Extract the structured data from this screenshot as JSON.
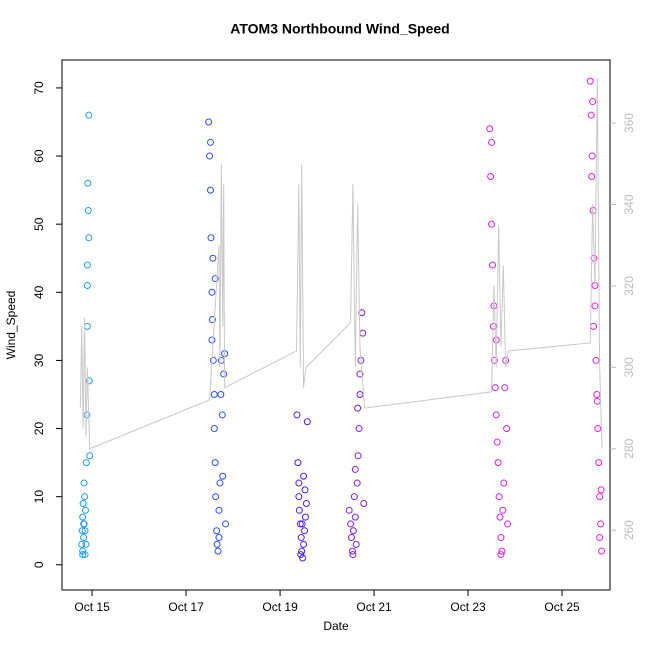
{
  "chart_data": {
    "type": "scatter",
    "title": "ATOM3 Northbound Wind_Speed",
    "x_label": "Date",
    "y_label": "Wind_Speed",
    "xlim": [
      14.36,
      26.02
    ],
    "ylim": [
      -3.7,
      74.1
    ],
    "y2lim": [
      245.3,
      375.5
    ],
    "xticks": [
      {
        "value": 15,
        "label": "Oct 15"
      },
      {
        "value": 17,
        "label": "Oct 17"
      },
      {
        "value": 19,
        "label": "Oct 19"
      },
      {
        "value": 21,
        "label": "Oct 21"
      },
      {
        "value": 23,
        "label": "Oct 23"
      },
      {
        "value": 25,
        "label": "Oct 25"
      }
    ],
    "yticks": [
      0,
      10,
      20,
      30,
      40,
      50,
      60,
      70
    ],
    "y2ticks": [
      260,
      280,
      300,
      320,
      340,
      360
    ],
    "series": [
      {
        "color": "#1e9bf0",
        "x": [
          14.78,
          14.79,
          14.8,
          14.8,
          14.81,
          14.82,
          14.82,
          14.83,
          14.84,
          14.85,
          14.86,
          14.87,
          14.88,
          14.89,
          14.9,
          14.9,
          14.91,
          14.92,
          14.93,
          14.94,
          14.95,
          14.85,
          14.93,
          14.9,
          14.8,
          14.83
        ],
        "values": [
          3,
          5,
          7,
          2,
          9,
          4,
          6,
          12,
          10,
          5,
          8,
          3,
          15,
          22,
          35,
          44,
          56,
          52,
          48,
          27,
          16,
          1.5,
          66,
          41,
          1.5,
          6
        ]
      },
      {
        "color": "#2a4ff0",
        "x": [
          17.48,
          17.5,
          17.52,
          17.53,
          17.55,
          17.56,
          17.58,
          17.6,
          17.6,
          17.62,
          17.63,
          17.65,
          17.66,
          17.68,
          17.7,
          17.72,
          17.74,
          17.75,
          17.77,
          17.8,
          17.82,
          17.84,
          17.52,
          17.57,
          17.62,
          17.7,
          17.78,
          17.55
        ],
        "values": [
          65,
          60,
          55,
          48,
          40,
          36,
          30,
          25,
          20,
          15,
          10,
          5,
          3,
          2,
          8,
          12,
          25,
          30,
          22,
          28,
          31,
          6,
          62,
          45,
          42,
          4,
          13,
          33
        ]
      },
      {
        "color": "#4b1ee8",
        "x": [
          19.36,
          19.38,
          19.4,
          19.41,
          19.43,
          19.45,
          19.46,
          19.48,
          19.5,
          19.52,
          19.54,
          19.56,
          19.58,
          19.4,
          19.47,
          19.53,
          19.44,
          19.5
        ],
        "values": [
          22,
          15,
          10,
          8,
          6,
          4,
          2,
          1,
          3,
          5,
          7,
          9,
          21,
          12,
          6,
          11,
          1.5,
          13
        ]
      },
      {
        "color": "#7a1ee8",
        "x": [
          20.47,
          20.5,
          20.52,
          20.54,
          20.56,
          20.58,
          20.6,
          20.62,
          20.64,
          20.66,
          20.68,
          20.7,
          20.72,
          20.74,
          20.76,
          20.78,
          20.55,
          20.65,
          20.7,
          20.6
        ],
        "values": [
          8,
          6,
          4,
          2,
          5,
          10,
          7,
          3,
          12,
          16,
          20,
          25,
          30,
          37,
          34,
          9,
          1.5,
          23,
          28,
          14
        ]
      },
      {
        "color": "#d81ee8",
        "x": [
          23.46,
          23.48,
          23.5,
          23.52,
          23.54,
          23.56,
          23.58,
          23.6,
          23.62,
          23.64,
          23.66,
          23.68,
          23.7,
          23.72,
          23.74,
          23.76,
          23.78,
          23.8,
          23.82,
          23.84,
          23.5,
          23.6,
          23.7,
          23.55
        ],
        "values": [
          64,
          57,
          50,
          44,
          35,
          30,
          26,
          22,
          18,
          15,
          10,
          7,
          4,
          2,
          8,
          12,
          26,
          30,
          20,
          6,
          62,
          33,
          1.5,
          38
        ]
      },
      {
        "color": "#f01ee0",
        "x": [
          25.6,
          25.62,
          25.64,
          25.66,
          25.68,
          25.7,
          25.72,
          25.74,
          25.76,
          25.78,
          25.8,
          25.82,
          25.84,
          25.65,
          25.7,
          25.75,
          25.8,
          25.63,
          25.67,
          25.83
        ],
        "values": [
          71,
          66,
          60,
          52,
          45,
          38,
          30,
          25,
          20,
          15,
          10,
          6,
          2,
          68,
          41,
          24,
          4,
          57,
          35,
          11
        ]
      },
      {
        "type": "line",
        "axis": "y2",
        "color": "#c8c8c8",
        "x": [
          14.75,
          14.78,
          14.81,
          14.84,
          14.87,
          14.9,
          14.95,
          17.5,
          17.7,
          17.72,
          17.75,
          17.78,
          17.8,
          17.82,
          19.35,
          19.4,
          19.43,
          19.46,
          19.5,
          19.55,
          20.5,
          20.55,
          20.6,
          20.65,
          20.7,
          20.8,
          23.5,
          23.55,
          23.6,
          23.65,
          23.7,
          23.75,
          23.8,
          23.85,
          25.6,
          25.65,
          25.7,
          25.75,
          25.8,
          25.85
        ],
        "values": [
          290,
          310,
          285,
          312,
          283,
          300,
          280,
          292,
          330,
          300,
          350,
          310,
          345,
          295,
          304,
          345,
          300,
          350,
          295,
          300,
          311,
          345,
          300,
          340,
          305,
          290,
          294,
          320,
          300,
          335,
          305,
          325,
          300,
          304,
          306,
          340,
          320,
          371,
          300,
          280
        ]
      }
    ]
  }
}
